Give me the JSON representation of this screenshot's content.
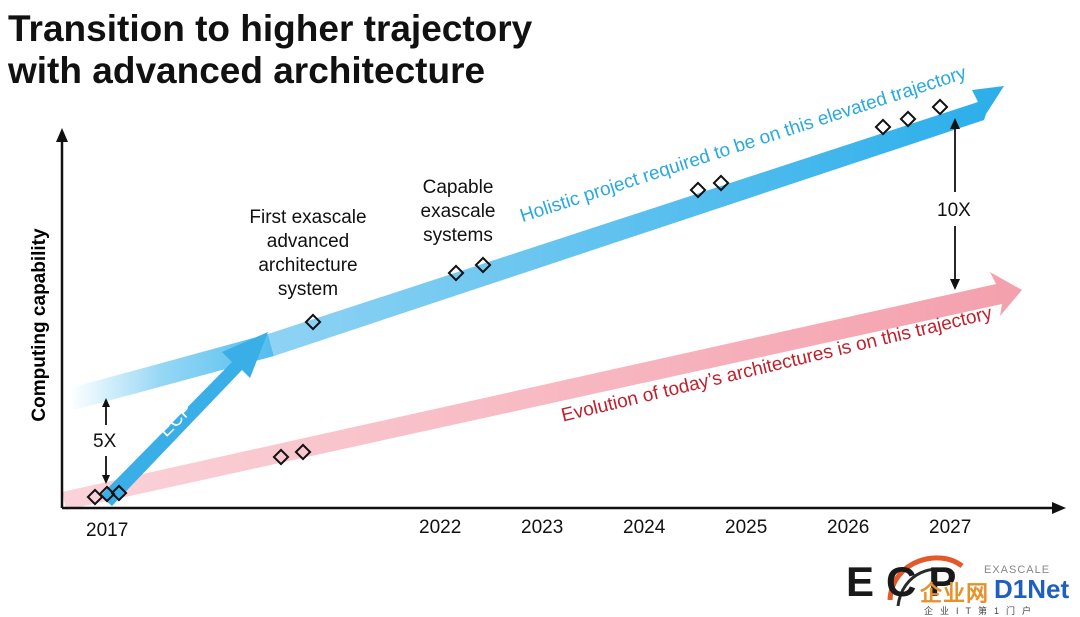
{
  "title_line1": "Transition to higher trajectory",
  "title_line2": "with advanced architecture",
  "y_axis_label": "Computing capability",
  "x_axis_years": {
    "y2017": "2017",
    "y2022": "2022",
    "y2023": "2023",
    "y2024": "2024",
    "y2025": "2025",
    "y2026": "2026",
    "y2027": "2027"
  },
  "annotations": {
    "first_exascale": [
      "First exascale",
      "advanced",
      "architecture",
      "system"
    ],
    "capable_exascale": [
      "Capable",
      "exascale",
      "systems"
    ],
    "five_x": "5X",
    "ten_x": "10X",
    "ecp_arrow": "ECP",
    "blue_arrow_text": "Holistic project required to be on this elevated trajectory",
    "red_arrow_text": "Evolution of today’s architectures is on this trajectory"
  },
  "logo": {
    "main": "ECP",
    "small": "EXASCALE"
  },
  "watermark": {
    "part1": "企业网",
    "part2": "D1Net",
    "tagline": "企业IT第1门户"
  },
  "colors": {
    "blue_arrow": "#3fb6ec",
    "red_arrow": "#f6a9b4",
    "blue_text": "#2aa9df",
    "red_text": "#c0202c",
    "marker_stroke": "#111111"
  }
}
